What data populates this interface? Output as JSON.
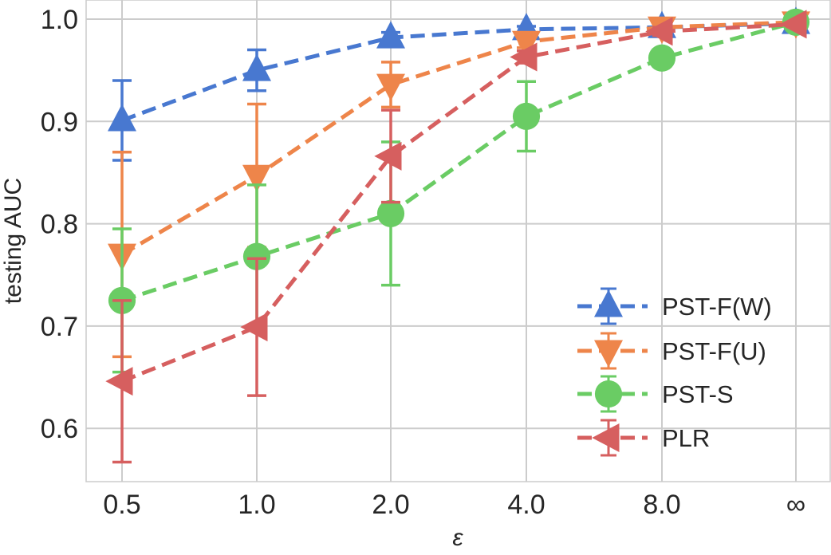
{
  "chart_data": {
    "type": "line",
    "title": "",
    "xlabel": "ε",
    "ylabel": "testing AUC",
    "categories": [
      "0.5",
      "1.0",
      "2.0",
      "4.0",
      "8.0",
      "∞"
    ],
    "ylim": [
      0.55,
      1.02
    ],
    "yticks": [
      0.6,
      0.7,
      0.8,
      0.9,
      1.0
    ],
    "ytick_labels": [
      "0.6",
      "0.7",
      "0.8",
      "0.9",
      "1.0"
    ],
    "grid": true,
    "legend_position": "lower-right",
    "series": [
      {
        "name": "PST-F(W)",
        "color": "#4878d0",
        "marker": "triangle-up",
        "values": [
          0.901,
          0.95,
          0.982,
          0.99,
          0.992,
          0.996
        ],
        "errors": [
          0.039,
          0.02,
          0.005,
          0.003,
          0.002,
          0.001
        ]
      },
      {
        "name": "PST-F(U)",
        "color": "#ee854a",
        "marker": "triangle-down",
        "values": [
          0.77,
          0.847,
          0.936,
          0.978,
          0.992,
          0.997
        ],
        "errors": [
          0.1,
          0.07,
          0.022,
          0.006,
          0.002,
          0.001
        ]
      },
      {
        "name": "PST-S",
        "color": "#6acc64",
        "marker": "circle",
        "values": [
          0.725,
          0.768,
          0.81,
          0.905,
          0.962,
          0.997
        ],
        "errors": [
          0.07,
          0.07,
          0.07,
          0.034,
          0.006,
          0.002
        ]
      },
      {
        "name": "PLR",
        "color": "#d65f5f",
        "marker": "triangle-left",
        "values": [
          0.646,
          0.699,
          0.866,
          0.963,
          0.988,
          0.995
        ],
        "errors": [
          0.079,
          0.067,
          0.045,
          0.006,
          0.004,
          0.002
        ]
      }
    ]
  }
}
